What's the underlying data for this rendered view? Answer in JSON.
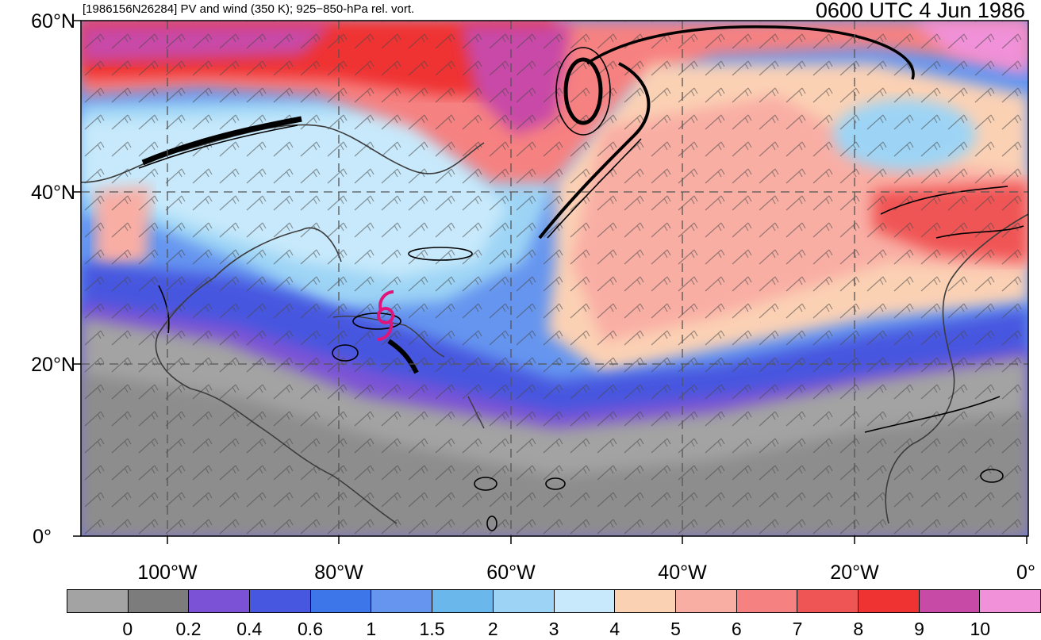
{
  "title_left": "[1986156N26284] PV and wind (350 K); 925−850-hPa rel. vort.",
  "title_right": "0600 UTC 4 Jun 1986",
  "storm_symbol": "tropical-cyclone-icon",
  "storm_symbol_color": "#e0157a",
  "map": {
    "lat_labels": [
      "60°N",
      "40°N",
      "20°N",
      "0°"
    ],
    "lon_labels": [
      "100°W",
      "80°W",
      "60°W",
      "40°W",
      "20°W",
      "0°"
    ],
    "lon_range": [
      -110,
      0
    ],
    "lat_range": [
      0,
      60
    ],
    "gridlines": "dashed"
  },
  "colorbar": {
    "colors": [
      "#a3a3a3",
      "#7c7c7c",
      "#7b52d6",
      "#4757df",
      "#3d76e8",
      "#6595ef",
      "#6ab7ec",
      "#9dd4f5",
      "#c7e9fb",
      "#fbd1b4",
      "#f9aea4",
      "#f68181",
      "#f05555",
      "#ef3333",
      "#c84aa7",
      "#f091d9"
    ],
    "tick_labels": [
      "0",
      "0.2",
      "0.4",
      "0.6",
      "1",
      "1.5",
      "2",
      "3",
      "4",
      "5",
      "6",
      "7",
      "8",
      "9",
      "10"
    ]
  }
}
